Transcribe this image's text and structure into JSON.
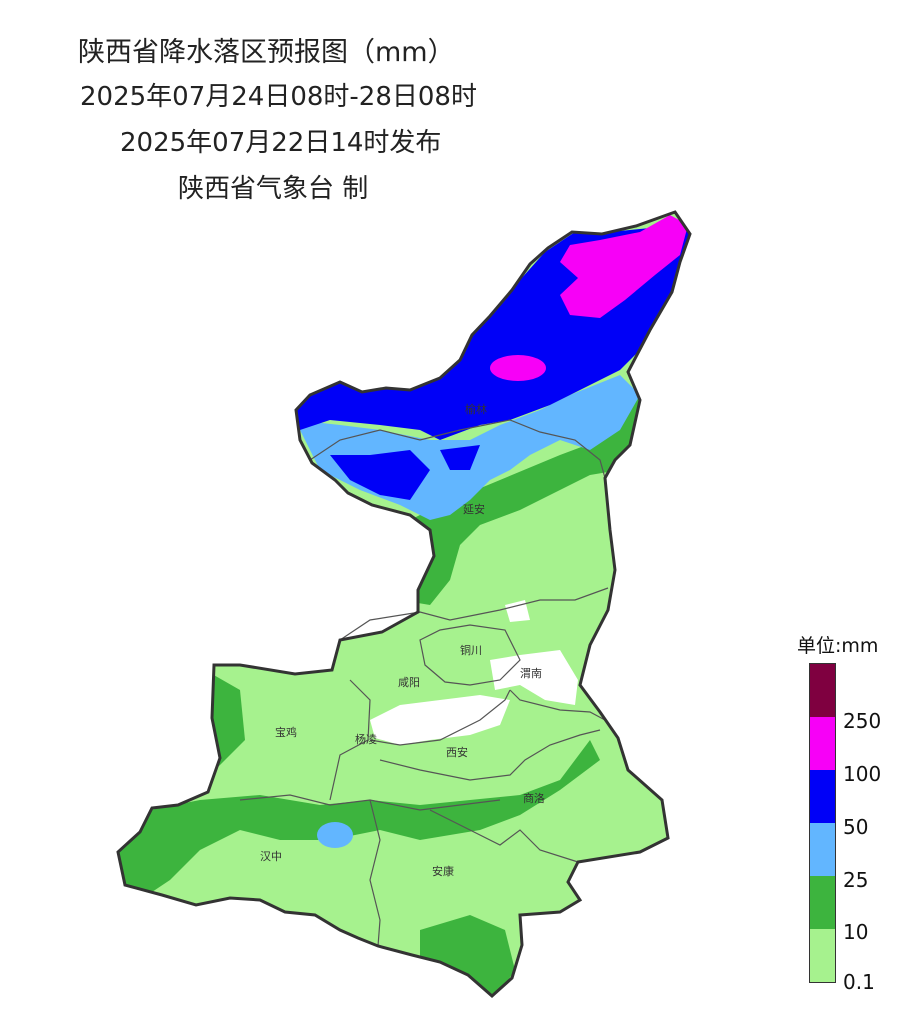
{
  "header": {
    "title": "陕西省降水落区预报图（mm）",
    "valid_range": "2025年07月24日08时-28日08时",
    "issued": "2025年07月22日14时发布",
    "publisher": "陕西省气象台 制"
  },
  "cities": {
    "yulin": "榆林",
    "yanan": "延安",
    "tongchuan": "铜川",
    "weinan": "渭南",
    "xianyang": "咸阳",
    "baoji": "宝鸡",
    "yangling": "杨凌",
    "xian": "西安",
    "shangluo": "商洛",
    "hanzhong": "汉中",
    "ankang": "安康"
  },
  "legend": {
    "title": "单位:mm",
    "colors": {
      "over250": "#7f0040",
      "c100_250": "#f700f7",
      "c50_100": "#0000f7",
      "c25_50": "#62b6ff",
      "c10_25": "#3db43e",
      "c01_10": "#a6f28e"
    },
    "labels": [
      "250",
      "100",
      "50",
      "25",
      "10",
      "0.1"
    ]
  }
}
